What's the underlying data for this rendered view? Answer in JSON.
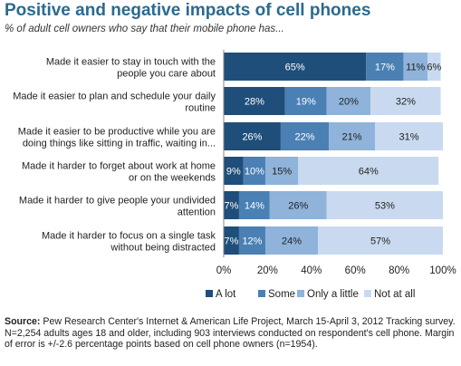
{
  "header": {
    "title": "Positive and negative impacts of cell phones",
    "subtitle": "% of adult cell owners who say that their mobile phone has..."
  },
  "chart_data": {
    "type": "bar",
    "orientation": "horizontal",
    "stacked": true,
    "categories": [
      "Made it easier to stay in touch with the people you care about",
      "Made it easier to plan and schedule your daily routine",
      "Made it easier to be productive while you are doing things like sitting in traffic, waiting in...",
      "Made it harder to forget about work at home or on the weekends",
      "Made it harder to give people your undivided attention",
      "Made it harder to focus on a single task without being distracted"
    ],
    "category_lines": [
      [
        "Made it easier to stay in touch with the",
        "people you care about"
      ],
      [
        "Made it easier to plan and schedule your daily",
        "routine"
      ],
      [
        "Made it easier to be productive while you are",
        "doing things like sitting in traffic, waiting in..."
      ],
      [
        "Made it harder to forget about work at home",
        "or on the weekends"
      ],
      [
        "Made it harder to give people your undivided",
        "attention"
      ],
      [
        "Made it harder to focus on a single task",
        "without being distracted"
      ]
    ],
    "series": [
      {
        "name": "A lot",
        "color": "#1f4e7a",
        "label_color": "#ffffff",
        "values": [
          65,
          28,
          26,
          9,
          7,
          7
        ]
      },
      {
        "name": "Some",
        "color": "#4a80b4",
        "label_color": "#ffffff",
        "values": [
          17,
          19,
          22,
          10,
          14,
          12
        ]
      },
      {
        "name": "Only a little",
        "color": "#8fb3da",
        "label_color": "#222222",
        "values": [
          11,
          20,
          21,
          15,
          26,
          24
        ]
      },
      {
        "name": "Not at all",
        "color": "#c9daf0",
        "label_color": "#222222",
        "values": [
          6,
          32,
          31,
          64,
          53,
          57
        ]
      }
    ],
    "xlim": [
      0,
      100
    ],
    "xticks": [
      "0%",
      "20%",
      "40%",
      "60%",
      "80%",
      "100%"
    ],
    "value_suffix": "%",
    "legend_position": "bottom",
    "grid": false
  },
  "footer": {
    "source_label": "Source:",
    "source_text": "Pew Research Center's Internet & American Life Project, March 15-April 3, 2012 Tracking survey. N=2,254 adults ages 18 and older, including 903 interviews conducted on respondent's cell phone. Margin of error is +/-2.6 percentage points based on cell phone owners (n=1954)."
  }
}
